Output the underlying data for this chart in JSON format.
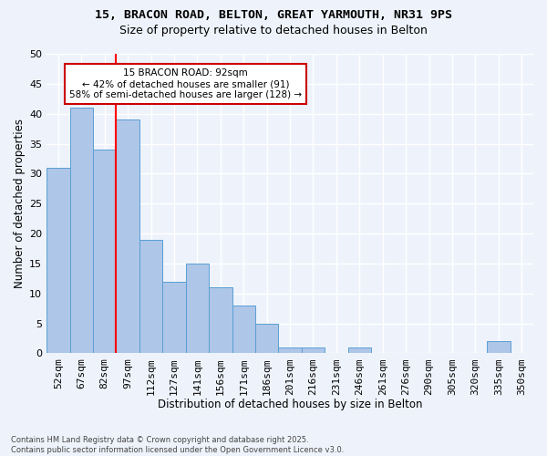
{
  "title_line1": "15, BRACON ROAD, BELTON, GREAT YARMOUTH, NR31 9PS",
  "title_line2": "Size of property relative to detached houses in Belton",
  "xlabel": "Distribution of detached houses by size in Belton",
  "ylabel": "Number of detached properties",
  "footnote": "Contains HM Land Registry data © Crown copyright and database right 2025.\nContains public sector information licensed under the Open Government Licence v3.0.",
  "categories": [
    "52sqm",
    "67sqm",
    "82sqm",
    "97sqm",
    "112sqm",
    "127sqm",
    "141sqm",
    "156sqm",
    "171sqm",
    "186sqm",
    "201sqm",
    "216sqm",
    "231sqm",
    "246sqm",
    "261sqm",
    "276sqm",
    "290sqm",
    "305sqm",
    "320sqm",
    "335sqm",
    "350sqm"
  ],
  "values": [
    31,
    41,
    34,
    39,
    19,
    12,
    15,
    11,
    8,
    5,
    1,
    1,
    0,
    1,
    0,
    0,
    0,
    0,
    0,
    2,
    0
  ],
  "bar_color": "#aec6e8",
  "bar_edge_color": "#5a9fd4",
  "background_color": "#eef3fb",
  "grid_color": "#ffffff",
  "red_line_x": 2.5,
  "annotation_text": "15 BRACON ROAD: 92sqm\n← 42% of detached houses are smaller (91)\n58% of semi-detached houses are larger (128) →",
  "annotation_box_color": "#ffffff",
  "annotation_box_edge": "#cc0000",
  "ylim": [
    0,
    50
  ],
  "yticks": [
    0,
    5,
    10,
    15,
    20,
    25,
    30,
    35,
    40,
    45,
    50
  ]
}
